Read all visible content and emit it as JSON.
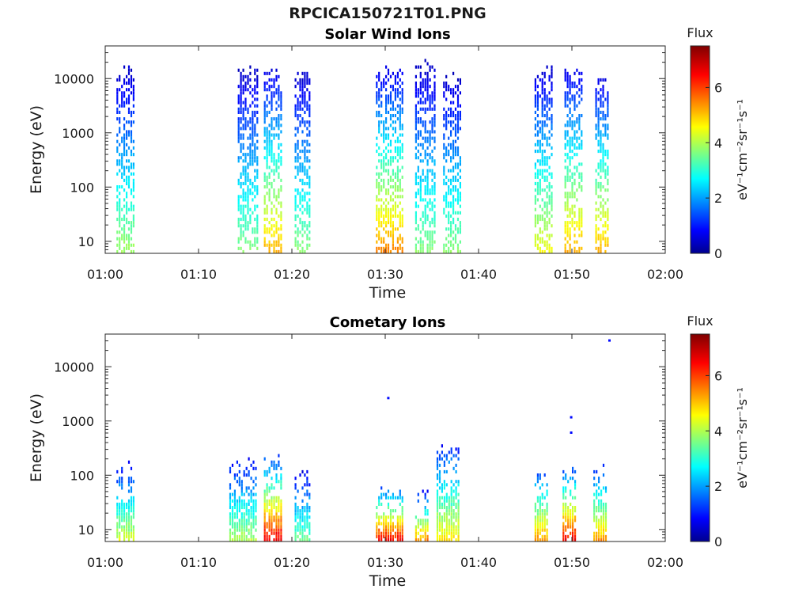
{
  "figure": {
    "title": "RPCICA150721T01.PNG"
  },
  "colorbar": {
    "label": "Flux",
    "unit_text": "eV⁻¹cm⁻²sr⁻¹s⁻¹",
    "ticks": [
      "0",
      "2",
      "4",
      "6"
    ],
    "range": [
      0,
      7.5
    ],
    "colormap": "jet"
  },
  "chart_data": [
    {
      "type": "heatmap",
      "title": "Solar Wind Ions",
      "xlabel": "Time",
      "ylabel": "Energy (eV)",
      "x_ticks": [
        "01:00",
        "01:10",
        "01:20",
        "01:30",
        "01:40",
        "01:50",
        "02:00"
      ],
      "x_range_minutes": [
        0,
        60
      ],
      "y_ticks": [
        "10",
        "100",
        "1000",
        "10000"
      ],
      "y_scale": "log",
      "y_range": [
        6,
        40000
      ],
      "bursts": [
        {
          "start_min": 1.2,
          "end_min": 3.0,
          "peak_flux": 4.2,
          "max_energy": 15000
        },
        {
          "start_min": 14.2,
          "end_min": 16.3,
          "peak_flux": 4.0,
          "max_energy": 15000
        },
        {
          "start_min": 17.0,
          "end_min": 19.0,
          "peak_flux": 5.5,
          "max_energy": 14000
        },
        {
          "start_min": 20.3,
          "end_min": 22.0,
          "peak_flux": 4.0,
          "max_energy": 15000
        },
        {
          "start_min": 29.0,
          "end_min": 31.8,
          "peak_flux": 5.8,
          "max_energy": 15000
        },
        {
          "start_min": 33.2,
          "end_min": 35.3,
          "peak_flux": 4.0,
          "max_energy": 20000
        },
        {
          "start_min": 36.2,
          "end_min": 38.0,
          "peak_flux": 4.0,
          "max_energy": 12000
        },
        {
          "start_min": 46.0,
          "end_min": 47.8,
          "peak_flux": 4.8,
          "max_energy": 15000
        },
        {
          "start_min": 49.2,
          "end_min": 51.0,
          "peak_flux": 5.5,
          "max_energy": 15000
        },
        {
          "start_min": 52.5,
          "end_min": 54.0,
          "peak_flux": 5.5,
          "max_energy": 11000
        }
      ]
    },
    {
      "type": "heatmap",
      "title": "Cometary Ions",
      "xlabel": "Time",
      "ylabel": "Energy (eV)",
      "x_ticks": [
        "01:00",
        "01:10",
        "01:20",
        "01:30",
        "01:40",
        "01:50",
        "02:00"
      ],
      "x_range_minutes": [
        0,
        60
      ],
      "y_ticks": [
        "10",
        "100",
        "1000",
        "10000"
      ],
      "y_scale": "log",
      "y_range": [
        6,
        40000
      ],
      "bursts": [
        {
          "start_min": 1.2,
          "end_min": 3.0,
          "peak_flux": 4.8,
          "max_energy": 150
        },
        {
          "start_min": 13.3,
          "end_min": 16.3,
          "peak_flux": 4.5,
          "max_energy": 200
        },
        {
          "start_min": 17.0,
          "end_min": 18.8,
          "peak_flux": 7.2,
          "max_energy": 200
        },
        {
          "start_min": 20.3,
          "end_min": 22.0,
          "peak_flux": 4.0,
          "max_energy": 130
        },
        {
          "start_min": 29.0,
          "end_min": 32.0,
          "peak_flux": 7.0,
          "max_energy": 60
        },
        {
          "start_min": 33.2,
          "end_min": 34.5,
          "peak_flux": 6.0,
          "max_energy": 45
        },
        {
          "start_min": 35.5,
          "end_min": 38.0,
          "peak_flux": 5.2,
          "max_energy": 400
        },
        {
          "start_min": 46.0,
          "end_min": 47.5,
          "peak_flux": 5.8,
          "max_energy": 150
        },
        {
          "start_min": 49.0,
          "end_min": 50.5,
          "peak_flux": 7.0,
          "max_energy": 130
        },
        {
          "start_min": 52.3,
          "end_min": 53.8,
          "peak_flux": 5.8,
          "max_energy": 150
        }
      ],
      "isolated_points": [
        {
          "time_min": 30.2,
          "energy": 2600,
          "flux": 1.0
        },
        {
          "time_min": 49.8,
          "energy": 1150,
          "flux": 1.0
        },
        {
          "time_min": 49.8,
          "energy": 600,
          "flux": 1.0
        },
        {
          "time_min": 53.9,
          "energy": 30000,
          "flux": 1.0
        }
      ]
    }
  ]
}
